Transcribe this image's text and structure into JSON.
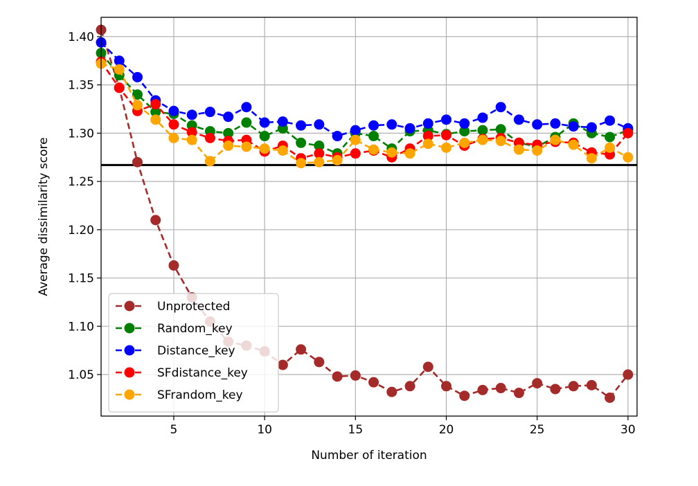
{
  "chart_data": {
    "type": "line",
    "title": "",
    "xlabel": "Number of iteration",
    "ylabel": "Average dissimilarity score",
    "xlim": [
      1,
      30.5
    ],
    "ylim": [
      1.007,
      1.42
    ],
    "xticks": [
      5,
      10,
      15,
      20,
      25,
      30
    ],
    "yticks": [
      1.05,
      1.1,
      1.15,
      1.2,
      1.25,
      1.3,
      1.35,
      1.4
    ],
    "ytick_labels": [
      "1.05",
      "1.10",
      "1.15",
      "1.20",
      "1.25",
      "1.30",
      "1.35",
      "1.40"
    ],
    "grid": true,
    "legend_position": "lower-left",
    "reference_line": {
      "y": 1.267,
      "color": "#000000"
    },
    "x": [
      1,
      2,
      3,
      4,
      5,
      6,
      7,
      8,
      9,
      10,
      11,
      12,
      13,
      14,
      15,
      16,
      17,
      18,
      19,
      20,
      21,
      22,
      23,
      24,
      25,
      26,
      27,
      28,
      29,
      30
    ],
    "series": [
      {
        "name": "Unprotected",
        "color": "#a52a2a",
        "values": [
          1.407,
          1.347,
          1.27,
          1.21,
          1.163,
          1.13,
          1.105,
          1.084,
          1.08,
          1.074,
          1.06,
          1.076,
          1.063,
          1.048,
          1.049,
          1.042,
          1.032,
          1.038,
          1.058,
          1.038,
          1.028,
          1.034,
          1.036,
          1.031,
          1.041,
          1.035,
          1.038,
          1.039,
          1.026,
          1.05
        ]
      },
      {
        "name": "Random_key",
        "color": "#008000",
        "values": [
          1.383,
          1.36,
          1.34,
          1.322,
          1.32,
          1.308,
          1.302,
          1.3,
          1.311,
          1.297,
          1.305,
          1.29,
          1.287,
          1.279,
          1.3,
          1.297,
          1.284,
          1.302,
          1.303,
          1.299,
          1.302,
          1.303,
          1.304,
          1.29,
          1.286,
          1.296,
          1.31,
          1.3,
          1.296,
          1.303
        ]
      },
      {
        "name": "Distance_key",
        "color": "#0000ff",
        "values": [
          1.394,
          1.375,
          1.358,
          1.334,
          1.323,
          1.319,
          1.322,
          1.317,
          1.327,
          1.311,
          1.312,
          1.308,
          1.309,
          1.297,
          1.303,
          1.308,
          1.309,
          1.305,
          1.31,
          1.314,
          1.31,
          1.316,
          1.327,
          1.314,
          1.309,
          1.31,
          1.307,
          1.306,
          1.313,
          1.305
        ]
      },
      {
        "name": "SFdistance_key",
        "color": "#ff0000",
        "values": [
          1.374,
          1.347,
          1.323,
          1.33,
          1.309,
          1.301,
          1.295,
          1.292,
          1.293,
          1.281,
          1.287,
          1.274,
          1.279,
          1.275,
          1.279,
          1.282,
          1.275,
          1.284,
          1.297,
          1.298,
          1.287,
          1.294,
          1.295,
          1.29,
          1.288,
          1.291,
          1.29,
          1.28,
          1.278,
          1.3
        ]
      },
      {
        "name": "SFrandom_key",
        "color": "#ffa500",
        "values": [
          1.372,
          1.366,
          1.329,
          1.314,
          1.295,
          1.293,
          1.271,
          1.287,
          1.286,
          1.284,
          1.282,
          1.269,
          1.27,
          1.272,
          1.293,
          1.283,
          1.28,
          1.279,
          1.289,
          1.285,
          1.29,
          1.293,
          1.292,
          1.283,
          1.282,
          1.293,
          1.288,
          1.274,
          1.285,
          1.275
        ]
      }
    ]
  }
}
